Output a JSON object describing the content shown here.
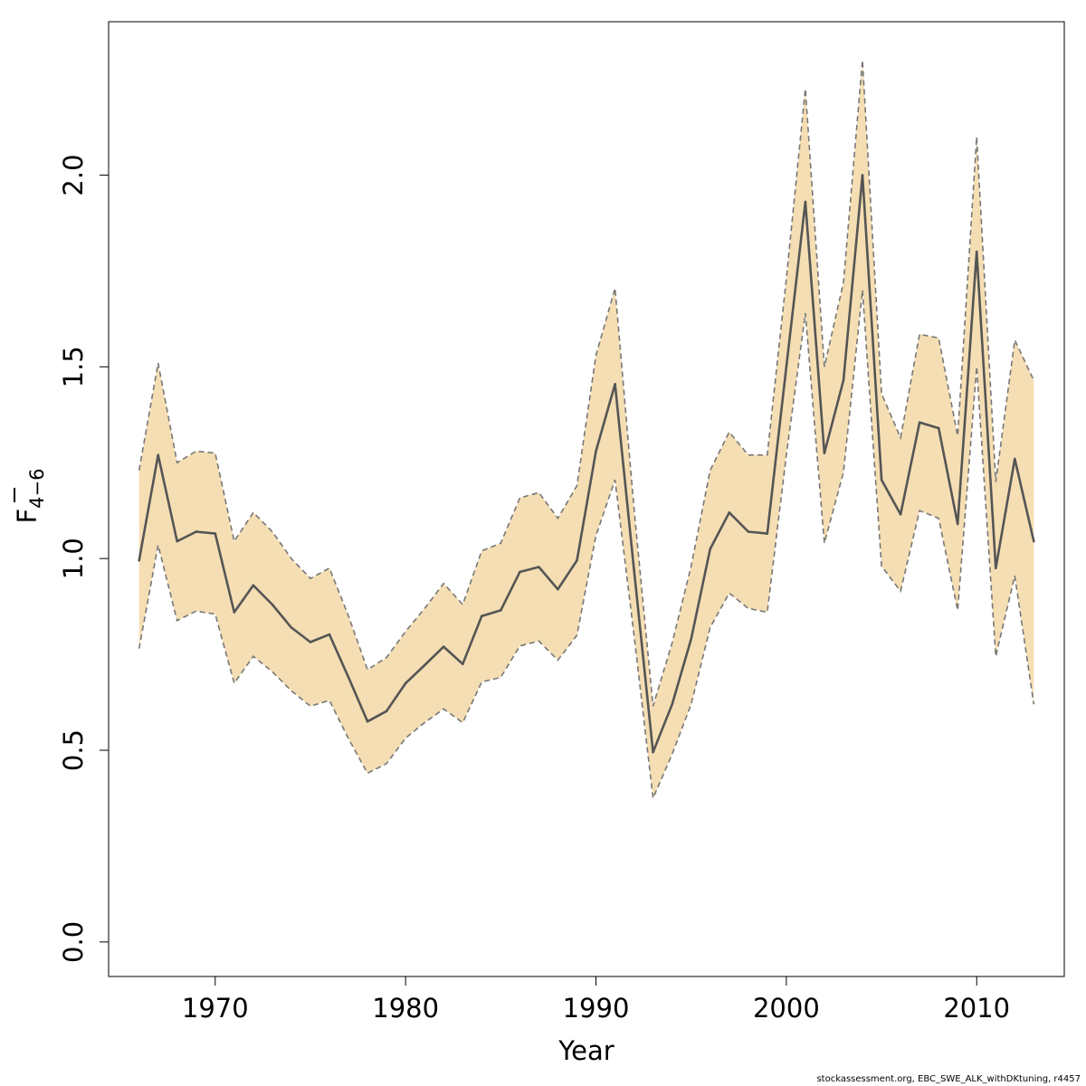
{
  "chart_data": {
    "type": "area",
    "xlabel": "Year",
    "ylabel_main": "F",
    "ylabel_sub": "4−6",
    "xlim": [
      1964.4,
      2014.6
    ],
    "ylim": [
      -0.09,
      2.4
    ],
    "x_ticks": [
      1970,
      1980,
      1990,
      2000,
      2010
    ],
    "y_ticks": [
      0.0,
      0.5,
      1.0,
      1.5,
      2.0
    ],
    "x_tick_labels": [
      "1970",
      "1980",
      "1990",
      "2000",
      "2010"
    ],
    "y_tick_labels": [
      "0.0",
      "0.5",
      "1.0",
      "1.5",
      "2.0"
    ],
    "grid": false,
    "colors": {
      "band": "#f5deb3",
      "line": "#555555",
      "bound": "#777777"
    },
    "x": [
      1966,
      1967,
      1968,
      1969,
      1970,
      1971,
      1972,
      1973,
      1974,
      1975,
      1976,
      1977,
      1978,
      1979,
      1980,
      1981,
      1982,
      1983,
      1984,
      1985,
      1986,
      1987,
      1988,
      1989,
      1990,
      1991,
      1992,
      1993,
      1994,
      1995,
      1996,
      1997,
      1998,
      1999,
      2000,
      2001,
      2002,
      2003,
      2004,
      2005,
      2006,
      2007,
      2008,
      2009,
      2010,
      2011,
      2012,
      2013
    ],
    "estimate": [
      0.995,
      1.27,
      1.045,
      1.07,
      1.065,
      0.86,
      0.93,
      0.88,
      0.82,
      0.782,
      0.802,
      0.69,
      0.575,
      0.602,
      0.675,
      0.722,
      0.77,
      0.725,
      0.85,
      0.865,
      0.965,
      0.978,
      0.92,
      0.995,
      1.28,
      1.455,
      0.97,
      0.495,
      0.62,
      0.79,
      1.025,
      1.12,
      1.07,
      1.065,
      1.5,
      1.93,
      1.275,
      1.465,
      2.0,
      1.205,
      1.115,
      1.355,
      1.34,
      1.09,
      1.8,
      0.975,
      1.26,
      1.045
    ],
    "upper": [
      1.23,
      1.51,
      1.25,
      1.28,
      1.275,
      1.045,
      1.12,
      1.07,
      1.0,
      0.948,
      0.975,
      0.85,
      0.71,
      0.742,
      0.81,
      0.87,
      0.935,
      0.88,
      1.02,
      1.04,
      1.158,
      1.172,
      1.105,
      1.19,
      1.53,
      1.705,
      1.13,
      0.615,
      0.78,
      0.98,
      1.23,
      1.33,
      1.27,
      1.27,
      1.73,
      2.225,
      1.5,
      1.72,
      2.3,
      1.43,
      1.315,
      1.585,
      1.575,
      1.32,
      2.1,
      1.2,
      1.57,
      1.465
    ],
    "lower": [
      0.765,
      1.035,
      0.838,
      0.863,
      0.855,
      0.675,
      0.745,
      0.705,
      0.655,
      0.615,
      0.63,
      0.53,
      0.44,
      0.465,
      0.532,
      0.572,
      0.608,
      0.572,
      0.678,
      0.69,
      0.772,
      0.785,
      0.735,
      0.8,
      1.06,
      1.205,
      0.8,
      0.375,
      0.49,
      0.62,
      0.82,
      0.91,
      0.87,
      0.86,
      1.27,
      1.64,
      1.04,
      1.225,
      1.7,
      0.98,
      0.915,
      1.125,
      1.105,
      0.865,
      1.5,
      0.745,
      0.955,
      0.62
    ]
  },
  "footnote": "stockassessment.org, EBC_SWE_ALK_withDKtuning, r4457"
}
